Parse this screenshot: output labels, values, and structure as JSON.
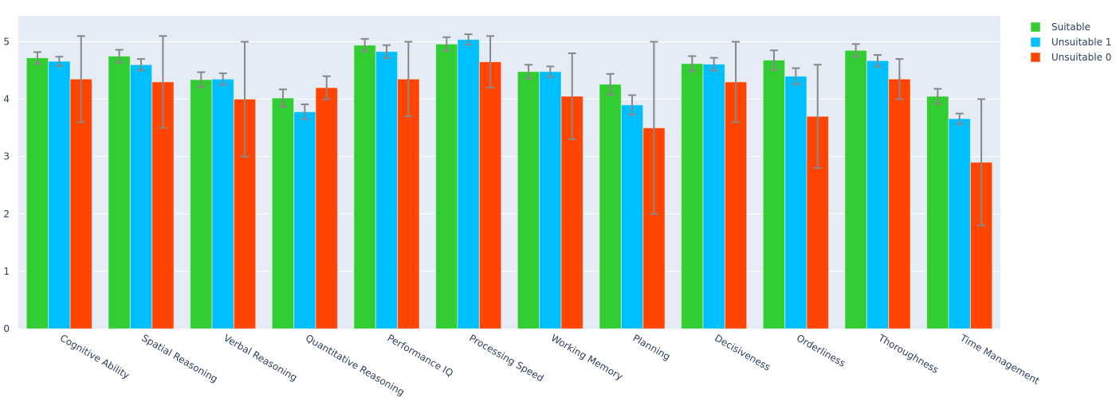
{
  "chart_data": {
    "type": "bar",
    "title": "",
    "xlabel": "",
    "ylabel": "",
    "ylim": [
      0,
      5.45
    ],
    "yticks": [
      0,
      1,
      2,
      3,
      4,
      5
    ],
    "grid": true,
    "legend_position": "top-right",
    "categories": [
      "Cognitive Ability",
      "Spatial Reasoning",
      "Verbal Reasoning",
      "Quantitative Reasoning",
      "Performance IQ",
      "Processing Speed",
      "Working Memory",
      "Planning",
      "Decisiveness",
      "Orderliness",
      "Thoroughness",
      "Time Management"
    ],
    "series": [
      {
        "name": "Suitable",
        "color": "#32cd32",
        "values": [
          4.72,
          4.75,
          4.34,
          4.02,
          4.94,
          4.96,
          4.48,
          4.26,
          4.62,
          4.68,
          4.85,
          4.05
        ],
        "error_low": [
          4.62,
          4.64,
          4.21,
          3.87,
          4.83,
          4.84,
          4.36,
          4.08,
          4.49,
          4.51,
          4.74,
          3.92
        ],
        "error_high": [
          4.82,
          4.86,
          4.47,
          4.17,
          5.05,
          5.08,
          4.6,
          4.44,
          4.75,
          4.85,
          4.96,
          4.18
        ]
      },
      {
        "name": "Unsuitable 1",
        "color": "#00bfff",
        "values": [
          4.66,
          4.6,
          4.35,
          3.78,
          4.83,
          5.04,
          4.48,
          3.9,
          4.61,
          4.4,
          4.67,
          3.66
        ],
        "error_low": [
          4.58,
          4.5,
          4.25,
          3.65,
          4.72,
          4.95,
          4.39,
          3.73,
          4.5,
          4.26,
          4.57,
          3.57
        ],
        "error_high": [
          4.74,
          4.7,
          4.45,
          3.91,
          4.94,
          5.13,
          4.57,
          4.07,
          4.72,
          4.54,
          4.77,
          3.75
        ]
      },
      {
        "name": "Unsuitable 0",
        "color": "#ff4500",
        "values": [
          4.35,
          4.3,
          4.0,
          4.2,
          4.35,
          4.65,
          4.05,
          3.5,
          4.3,
          3.7,
          4.35,
          2.9
        ],
        "error_low": [
          3.6,
          3.5,
          3.0,
          4.0,
          3.7,
          4.2,
          3.3,
          2.0,
          3.6,
          2.8,
          4.0,
          1.8
        ],
        "error_high": [
          5.1,
          5.1,
          5.0,
          4.4,
          5.0,
          5.1,
          4.8,
          5.0,
          5.0,
          4.6,
          4.7,
          4.0
        ]
      }
    ]
  },
  "style": {
    "plot_bg": "#e5ecf6",
    "grid_color": "#ffffff",
    "error_color": "#888888",
    "text_color": "#2a3f5f"
  }
}
